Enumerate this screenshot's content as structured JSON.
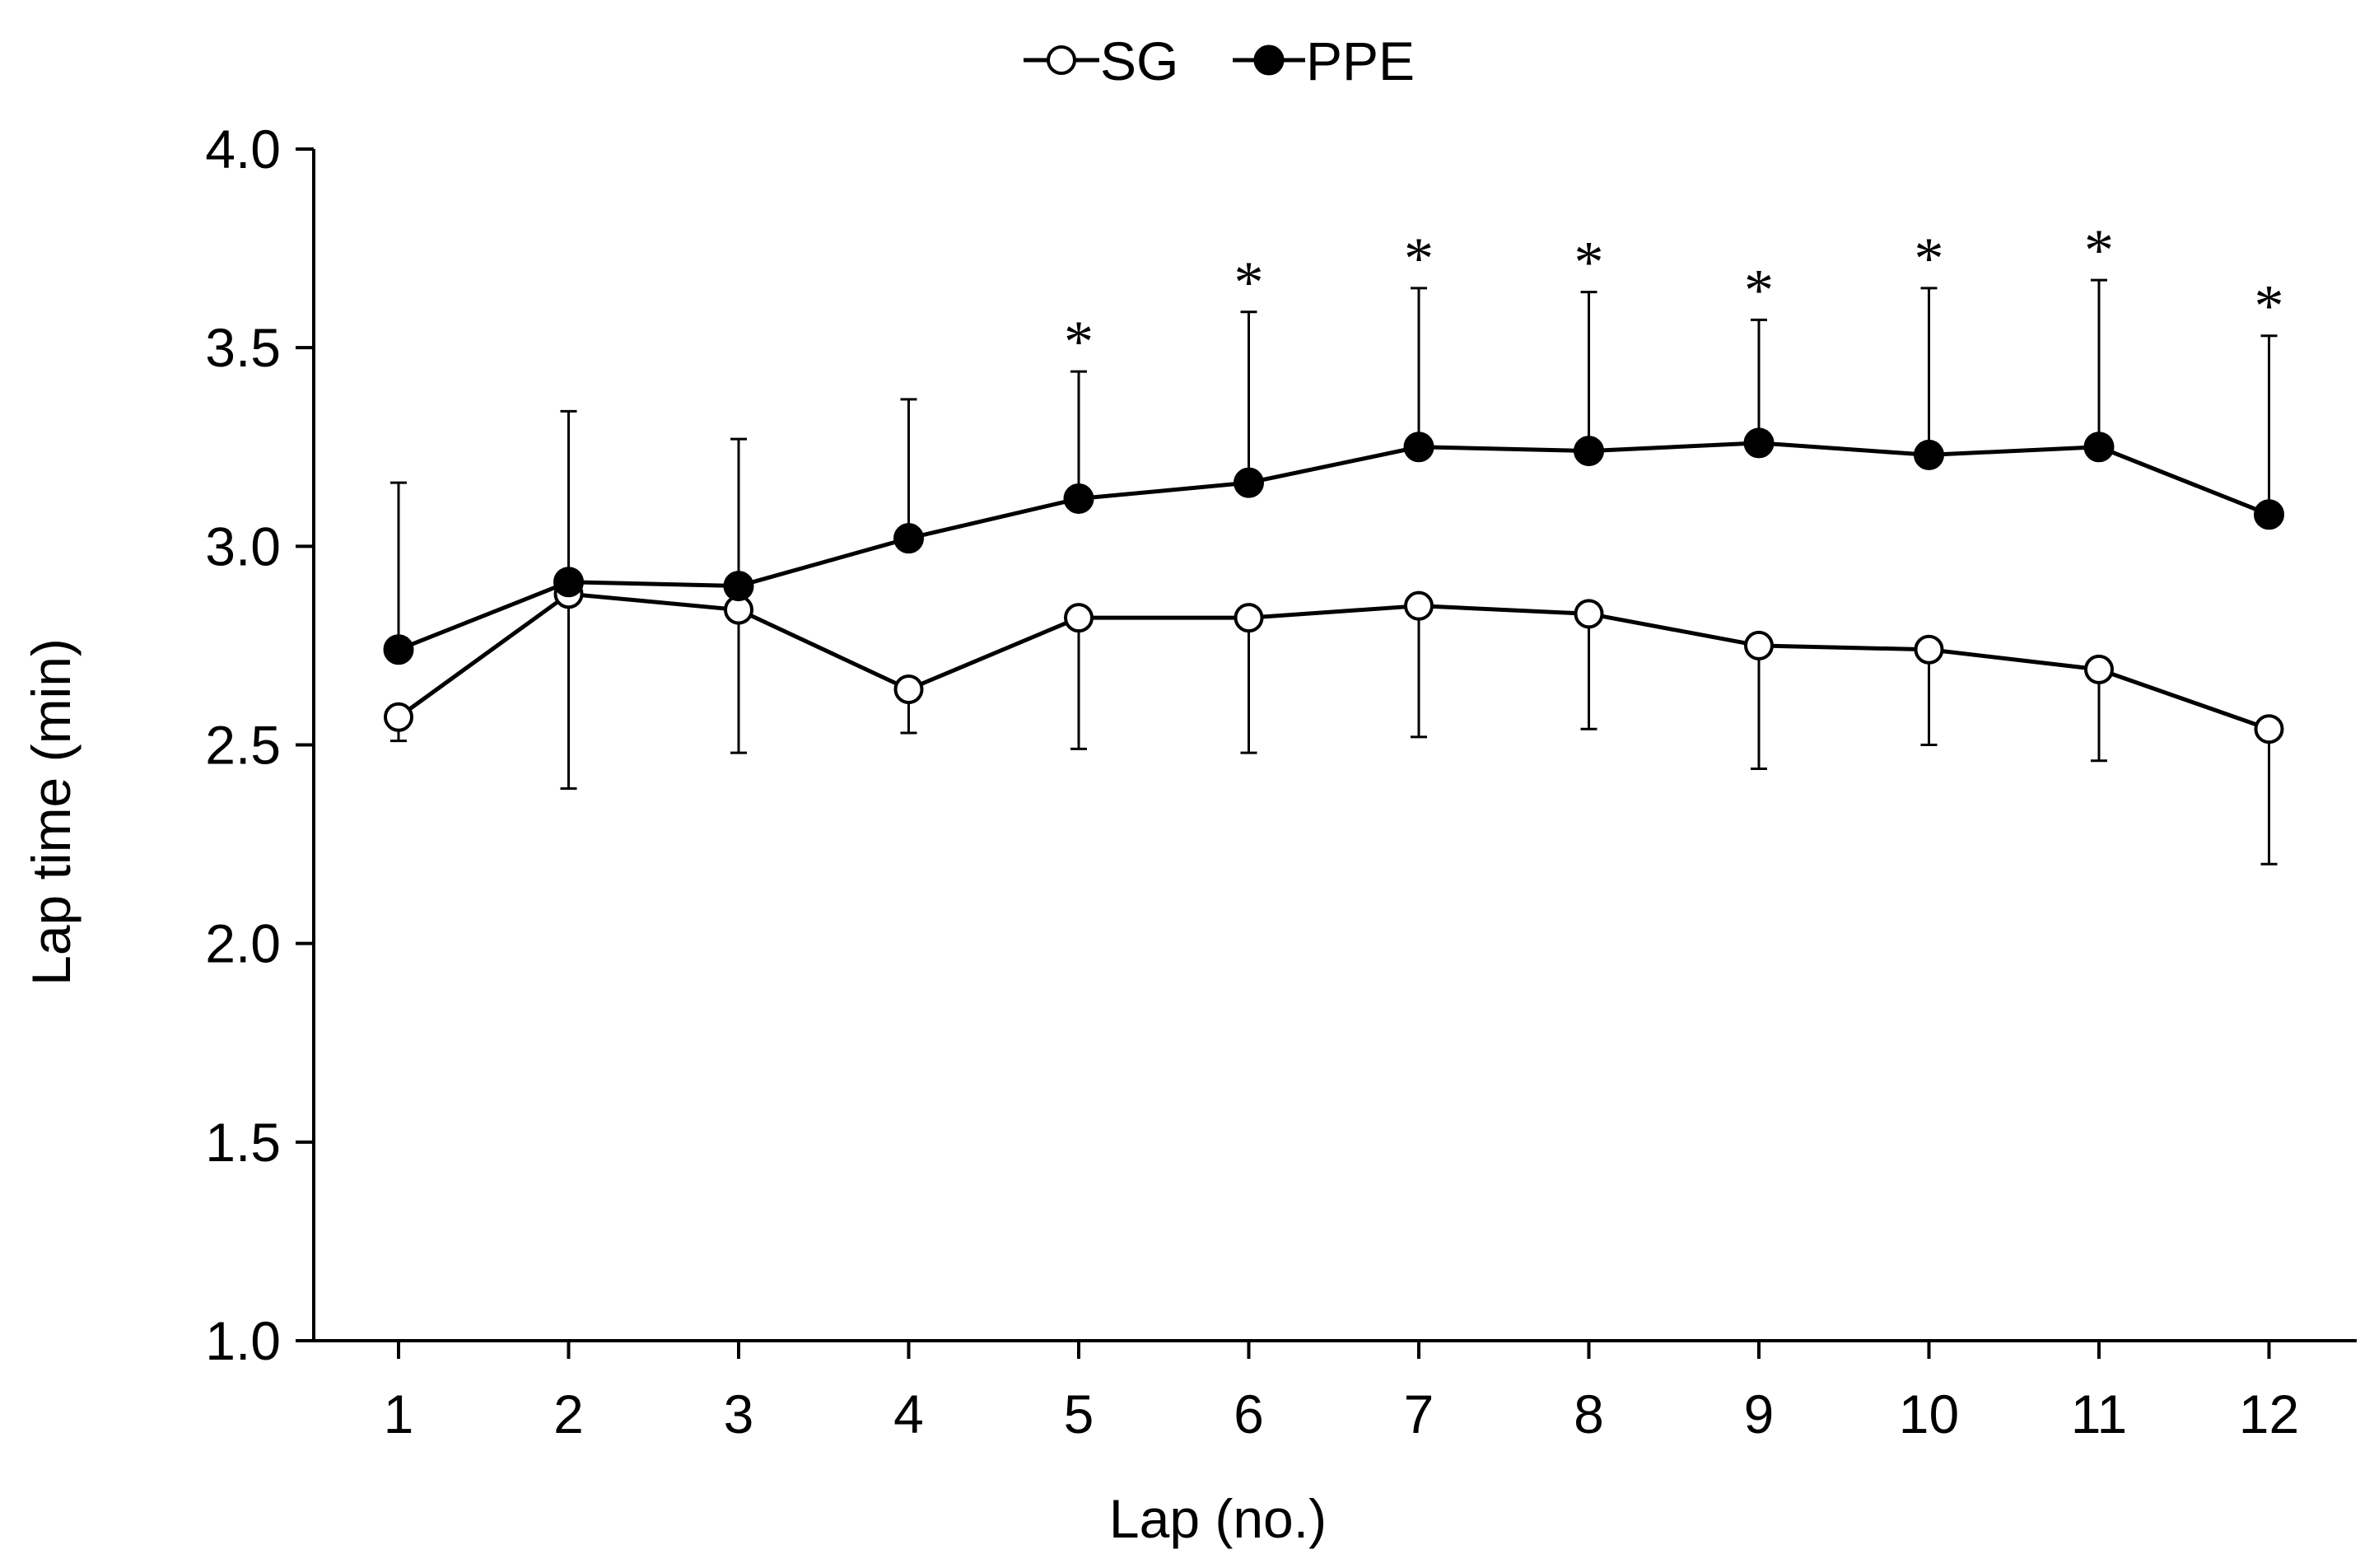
{
  "chart_data": {
    "type": "line",
    "title": "",
    "xlabel": "Lap (no.)",
    "ylabel": "Lap time (min)",
    "ylim": [
      1.0,
      4.0
    ],
    "yticks": [
      "1.0",
      "1.5",
      "2.0",
      "2.5",
      "3.0",
      "3.5",
      "4.0"
    ],
    "categories": [
      "1",
      "2",
      "3",
      "4",
      "5",
      "6",
      "7",
      "8",
      "9",
      "10",
      "11",
      "12"
    ],
    "legend_position": "top-center",
    "grid": false,
    "series": [
      {
        "name": "SG",
        "marker": "open-circle",
        "values": [
          2.57,
          2.88,
          2.84,
          2.64,
          2.82,
          2.82,
          2.85,
          2.83,
          2.75,
          2.74,
          2.69,
          2.54
        ],
        "error_lower": [
          2.51,
          2.39,
          2.48,
          2.53,
          2.49,
          2.48,
          2.52,
          2.54,
          2.44,
          2.5,
          2.46,
          2.2
        ],
        "error_direction": "down"
      },
      {
        "name": "PPE",
        "marker": "filled-circle",
        "values": [
          2.74,
          2.91,
          2.9,
          3.02,
          3.12,
          3.16,
          3.25,
          3.24,
          3.26,
          3.23,
          3.25,
          3.08
        ],
        "error_upper": [
          3.16,
          3.34,
          3.27,
          3.37,
          3.44,
          3.59,
          3.65,
          3.64,
          3.57,
          3.65,
          3.67,
          3.53
        ],
        "error_direction": "up"
      }
    ],
    "annotations": [
      {
        "category": "5",
        "text": "*"
      },
      {
        "category": "6",
        "text": "*"
      },
      {
        "category": "7",
        "text": "*"
      },
      {
        "category": "8",
        "text": "*"
      },
      {
        "category": "9",
        "text": "*"
      },
      {
        "category": "10",
        "text": "*"
      },
      {
        "category": "11",
        "text": "*"
      },
      {
        "category": "12",
        "text": "*"
      }
    ],
    "colors": {
      "line": "#000000",
      "open_fill": "#ffffff",
      "filled_fill": "#000000",
      "background": "#ffffff"
    }
  }
}
